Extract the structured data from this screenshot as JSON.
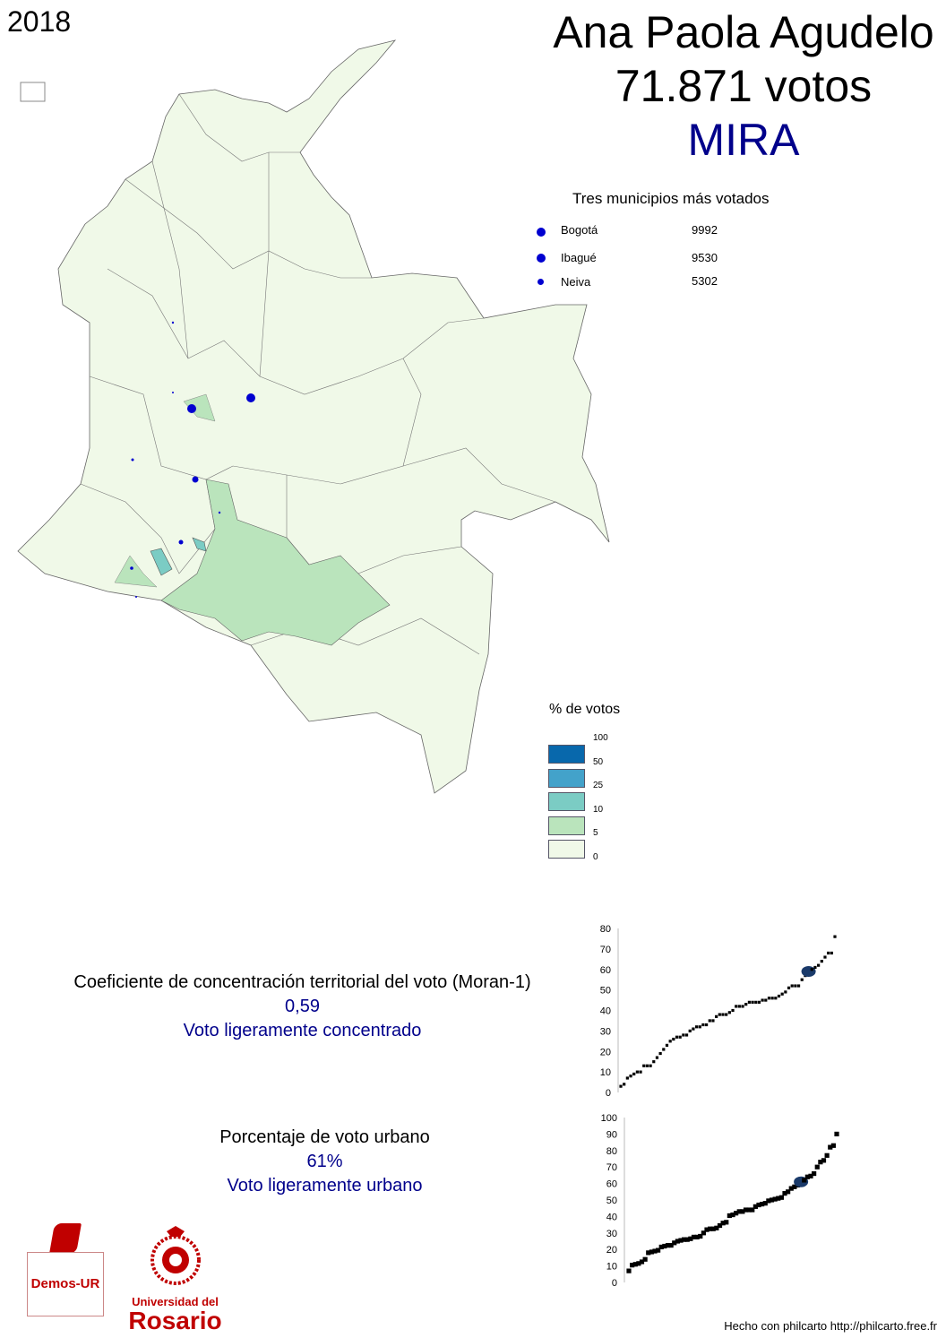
{
  "year": "2018",
  "header": {
    "candidate": "Ana Paola Agudelo",
    "votes": "71.871 votos",
    "party": "MIRA",
    "party_color": "#00008b"
  },
  "top_municipalities": {
    "title": "Tres municipios más votados",
    "items": [
      {
        "name": "Bogotá",
        "votes": "9992"
      },
      {
        "name": "Ibagué",
        "votes": "9530"
      },
      {
        "name": "Neiva",
        "votes": "5302"
      }
    ],
    "dot_color": "#0000d0"
  },
  "legend": {
    "title": "% de votos",
    "breaks": [
      "100",
      "50",
      "25",
      "10",
      "5",
      "0"
    ],
    "colors": [
      "#0868ac",
      "#43a2ca",
      "#7bccc4",
      "#bae4bc",
      "#f0f9e8"
    ]
  },
  "moran": {
    "label": "Coeficiente de concentración territorial del voto (Moran-1)",
    "value": "0,59",
    "interpretation": "Voto ligeramente concentrado"
  },
  "urban": {
    "label": "Porcentaje de voto urbano",
    "value": "61%",
    "interpretation": "Voto ligeramente urbano"
  },
  "chart_data": [
    {
      "type": "scatter",
      "ylim": [
        0,
        80
      ],
      "yticks": [
        "0",
        "10",
        "20",
        "30",
        "40",
        "50",
        "60",
        "70",
        "80"
      ],
      "highlight": 59,
      "values": [
        3,
        4,
        7,
        8,
        9,
        10,
        10,
        13,
        13,
        13,
        15,
        17,
        19,
        21,
        23,
        25,
        26,
        27,
        27,
        28,
        28,
        30,
        31,
        32,
        32,
        33,
        33,
        35,
        35,
        37,
        38,
        38,
        38,
        39,
        40,
        42,
        42,
        42,
        43,
        44,
        44,
        44,
        44,
        45,
        45,
        46,
        46,
        46,
        47,
        48,
        49,
        51,
        52,
        52,
        52,
        55,
        57,
        59,
        60,
        61,
        62,
        64,
        66,
        68,
        68,
        76
      ]
    },
    {
      "type": "scatter",
      "ylim": [
        0,
        100
      ],
      "yticks": [
        "0",
        "10",
        "20",
        "30",
        "40",
        "50",
        "60",
        "70",
        "80",
        "90",
        "100"
      ],
      "highlight": 61,
      "values": [
        7,
        10.5,
        11,
        11.5,
        12.5,
        14,
        18,
        18.5,
        19,
        19.5,
        21.5,
        22,
        22.5,
        22.5,
        24,
        25,
        25.5,
        26,
        26,
        26.5,
        27.5,
        27.5,
        28,
        30,
        32,
        32.5,
        32.5,
        33,
        34.5,
        36,
        36.5,
        40.5,
        41,
        42,
        43,
        43,
        44,
        44,
        44,
        46,
        47,
        47.5,
        48,
        49.5,
        50,
        50.5,
        51,
        51.5,
        54,
        55,
        57,
        58,
        59,
        61,
        62,
        64,
        64.5,
        66,
        70,
        73,
        74,
        77,
        82,
        83,
        90
      ]
    }
  ],
  "logos": {
    "demos": "Demos-UR",
    "university_line1": "Universidad del",
    "university_line2": "Rosario",
    "brand_color": "#c00000"
  },
  "footer": "Hecho con philcarto  http://philcarto.free.fr"
}
